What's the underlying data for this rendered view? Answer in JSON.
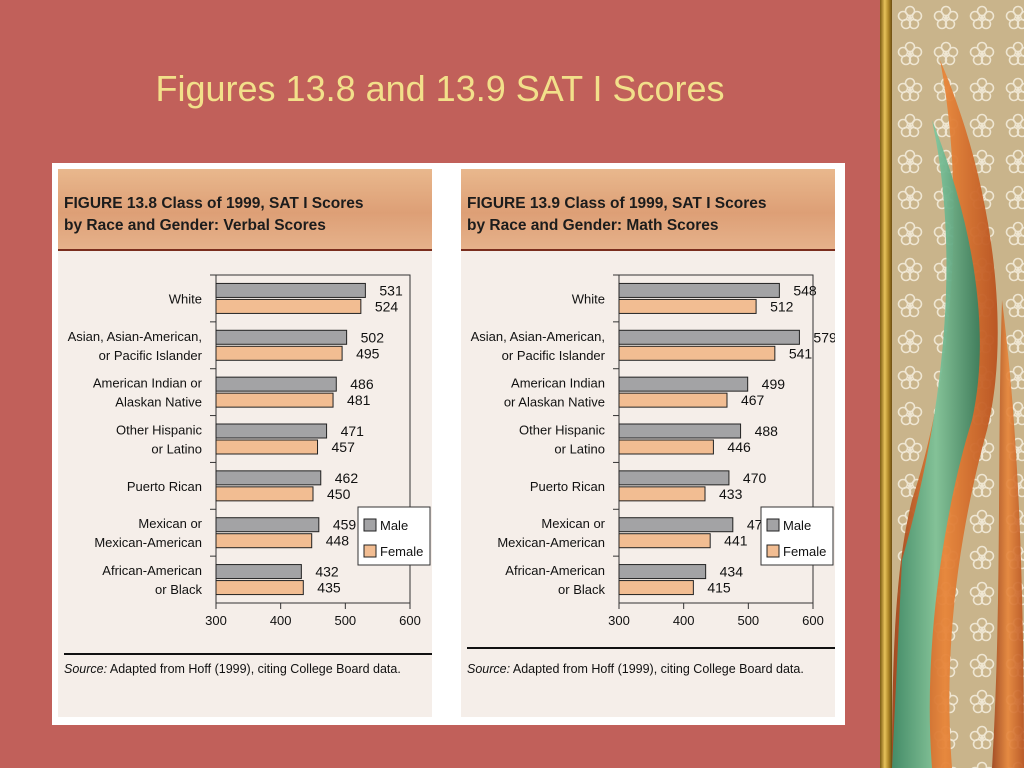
{
  "slide": {
    "title": "Figures 13.8 and 13.9 SAT I Scores"
  },
  "colors": {
    "slide_background": "#c1605a",
    "title_color": "#f2e08a",
    "male_bar": "#a3a3a5",
    "female_bar": "#f2bd92"
  },
  "chart_data": [
    {
      "type": "bar",
      "orientation": "horizontal",
      "title": "FIGURE 13.8  Class of 1999, SAT I Scores by Race and Gender: Verbal Scores",
      "title_lines": [
        "FIGURE 13.8  Class of 1999, SAT I Scores",
        "by Race and Gender: Verbal Scores"
      ],
      "categories": [
        "White",
        "Asian, Asian-American, or Pacific Islander",
        "American Indian or Alaskan Native",
        "Other Hispanic or Latino",
        "Puerto Rican",
        "Mexican or Mexican-American",
        "African-American or Black"
      ],
      "category_lines": [
        [
          "White"
        ],
        [
          "Asian, Asian-American,",
          "or Pacific Islander"
        ],
        [
          "American Indian or",
          "Alaskan Native"
        ],
        [
          "Other Hispanic",
          "or Latino"
        ],
        [
          "Puerto Rican"
        ],
        [
          "Mexican or",
          "Mexican-American"
        ],
        [
          "African-American",
          "or Black"
        ]
      ],
      "series": [
        {
          "name": "Male",
          "values": [
            531,
            502,
            486,
            471,
            462,
            459,
            432
          ]
        },
        {
          "name": "Female",
          "values": [
            524,
            495,
            481,
            457,
            450,
            448,
            435
          ]
        }
      ],
      "xlim": [
        300,
        600
      ],
      "xticks": [
        300,
        400,
        500,
        600
      ],
      "legend": "bottom-right",
      "source_label": "Source:",
      "source_text": "Adapted from Hoff (1999), citing College Board data."
    },
    {
      "type": "bar",
      "orientation": "horizontal",
      "title": "FIGURE 13.9  Class of 1999, SAT I Scores by Race and Gender: Math Scores",
      "title_lines": [
        "FIGURE 13.9  Class of 1999, SAT I Scores",
        "by Race and Gender: Math Scores"
      ],
      "categories": [
        "White",
        "Asian, Asian-American, or Pacific Islander",
        "American Indian or Alaskan Native",
        "Other Hispanic or Latino",
        "Puerto Rican",
        "Mexican or Mexican-American",
        "African-American or Black"
      ],
      "category_lines": [
        [
          "White"
        ],
        [
          "Asian, Asian-American,",
          "or Pacific Islander"
        ],
        [
          "American Indian",
          "or Alaskan Native"
        ],
        [
          "Other Hispanic",
          "or Latino"
        ],
        [
          "Puerto Rican"
        ],
        [
          "Mexican or",
          "Mexican-American"
        ],
        [
          "African-American",
          "or Black"
        ]
      ],
      "series": [
        {
          "name": "Male",
          "values": [
            548,
            579,
            499,
            488,
            470,
            476,
            434
          ]
        },
        {
          "name": "Female",
          "values": [
            512,
            541,
            467,
            446,
            433,
            441,
            415
          ]
        }
      ],
      "xlim": [
        300,
        600
      ],
      "xticks": [
        300,
        400,
        500,
        600
      ],
      "legend": "bottom-right",
      "source_label": "Source:",
      "source_text": "Adapted from Hoff (1999), citing College Board data."
    }
  ]
}
